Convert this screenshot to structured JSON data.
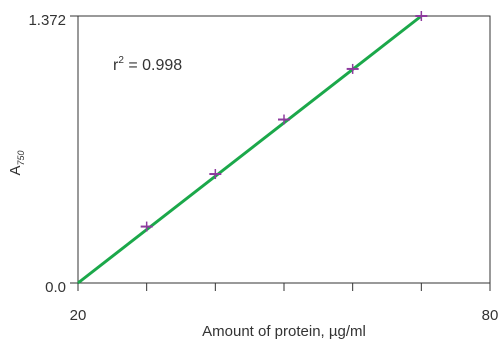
{
  "chart_data": {
    "type": "scatter",
    "ylabel_main": "A",
    "ylabel_sub": "750",
    "xlabel": "Amount of protein, µg/ml",
    "xlim": [
      20,
      80
    ],
    "ylim": [
      0.0,
      1.372
    ],
    "x_tick_labels": [
      "20",
      "80"
    ],
    "y_tick_labels": [
      "0.0",
      "1.372"
    ],
    "x_minor_ticks": [
      20,
      30,
      40,
      50,
      60,
      70,
      80
    ],
    "annotation": {
      "base": "r",
      "sup": "2",
      "rest": " = 0.998"
    },
    "points": [
      {
        "x": 30,
        "y": 0.29
      },
      {
        "x": 40,
        "y": 0.56
      },
      {
        "x": 50,
        "y": 0.84
      },
      {
        "x": 60,
        "y": 1.1
      },
      {
        "x": 70,
        "y": 1.372
      }
    ],
    "fit_line": {
      "x": [
        20,
        70
      ],
      "y": [
        0.0,
        1.372
      ],
      "r2": 0.998
    },
    "colors": {
      "line": "#1ba84a",
      "points": "#8e3a9e",
      "axes": "#333333"
    },
    "grid": false
  }
}
